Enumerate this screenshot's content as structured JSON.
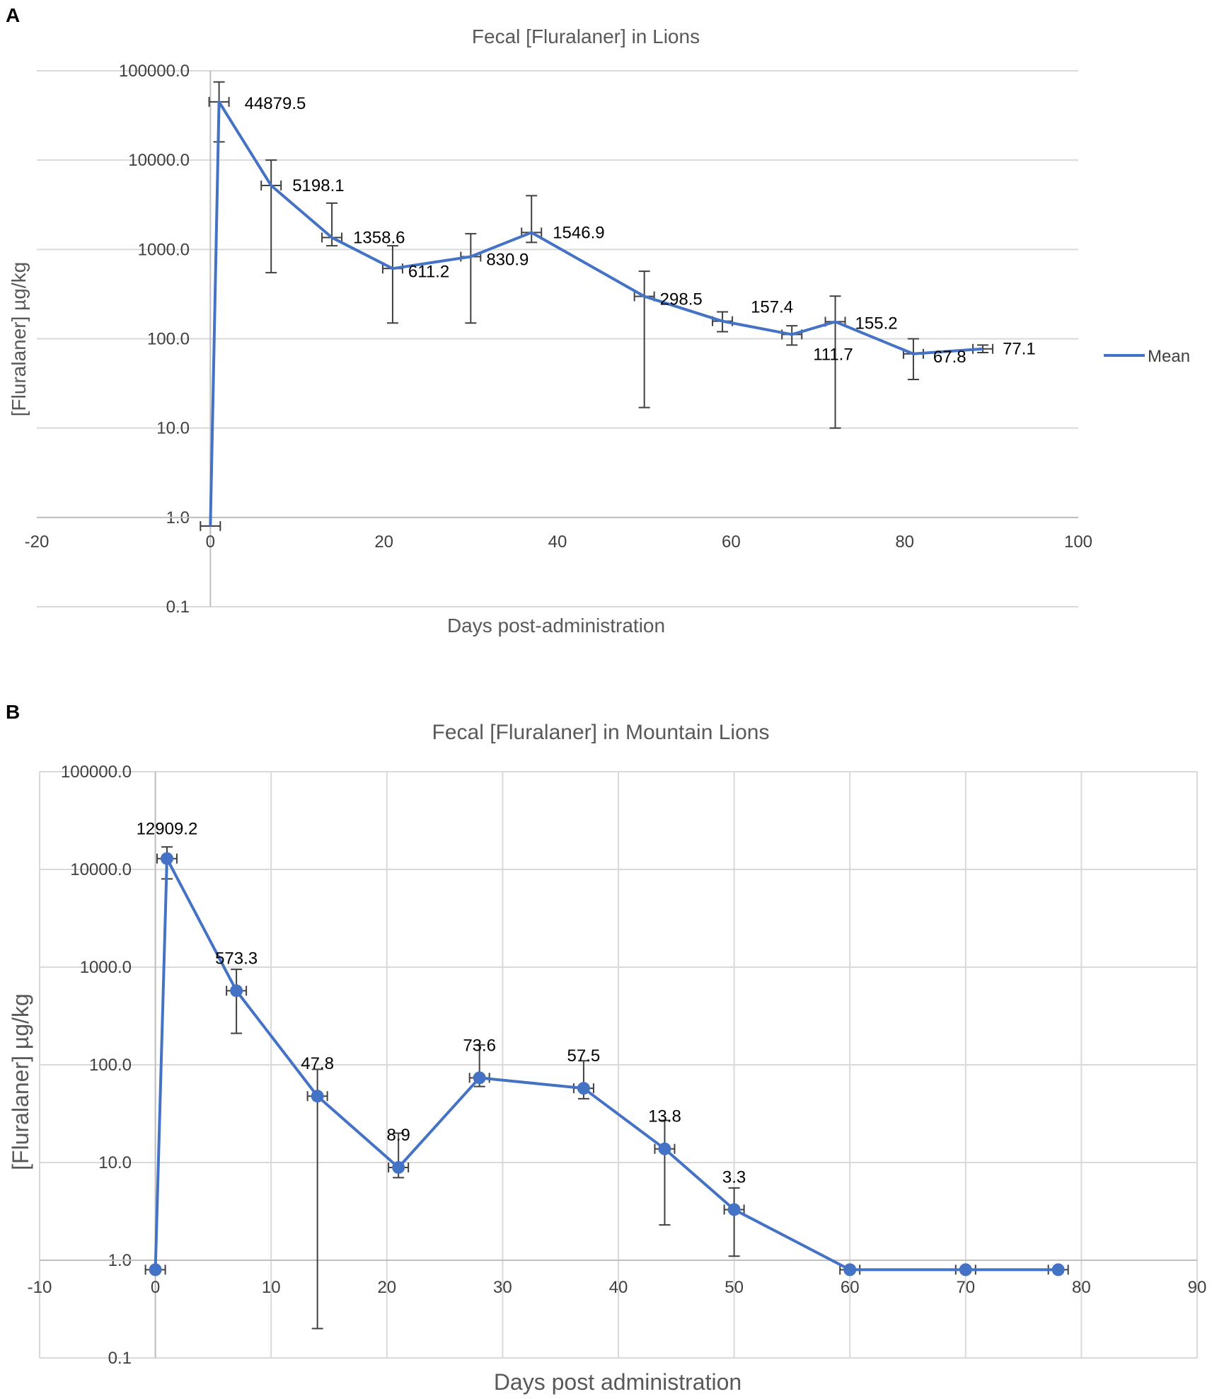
{
  "chart_data": [
    {
      "panel": "A",
      "type": "line",
      "title": "Fecal [Fluralaner] in Lions",
      "xlabel": "Days post-administration",
      "ylabel": "[Fluralaner] µg/kg",
      "yscale": "log",
      "ylim": [
        0.1,
        100000
      ],
      "xlim": [
        -20,
        100
      ],
      "xticks": [
        "-20",
        "0",
        "20",
        "40",
        "60",
        "80",
        "100"
      ],
      "yticks": [
        "0.1",
        "1.0",
        "10.0",
        "100.0",
        "1000.0",
        "10000.0",
        "100000.0"
      ],
      "grid": "horizontal",
      "legend": {
        "position": "right",
        "entries": [
          "Mean"
        ]
      },
      "markers": false,
      "color": "#4472C4",
      "series": [
        {
          "name": "Mean",
          "x": [
            0,
            1,
            7,
            14,
            21,
            30,
            37,
            50,
            59,
            67,
            72,
            81,
            89
          ],
          "values": [
            0.8,
            44879.5,
            5198.1,
            1358.6,
            611.2,
            830.9,
            1546.9,
            298.5,
            157.4,
            111.7,
            155.2,
            67.8,
            77.1
          ],
          "labels": [
            "",
            "44879.5",
            "5198.1",
            "1358.6",
            "611.2",
            "830.9",
            "1546.9",
            "298.5",
            "157.4",
            "111.7",
            "155.2",
            "67.8",
            "77.1"
          ],
          "err_low": [
            null,
            16000,
            550,
            1100,
            150,
            150,
            1200,
            17,
            120,
            85,
            10,
            35,
            70
          ],
          "err_high": [
            null,
            75000,
            10000,
            3300,
            1100,
            1500,
            4000,
            570,
            200,
            140,
            300,
            100,
            85
          ]
        }
      ]
    },
    {
      "panel": "B",
      "type": "line",
      "title": "Fecal [Fluralaner] in Mountain Lions",
      "xlabel": "Days post administration",
      "ylabel": "[Fluralaner] µg/kg",
      "yscale": "log",
      "ylim": [
        0.1,
        100000
      ],
      "xlim": [
        -10,
        90
      ],
      "xticks": [
        "-10",
        "0",
        "10",
        "20",
        "30",
        "40",
        "50",
        "60",
        "70",
        "80",
        "90"
      ],
      "yticks": [
        "0.1",
        "1.0",
        "10.0",
        "100.0",
        "1000.0",
        "10000.0",
        "100000.0"
      ],
      "grid": "both",
      "markers": true,
      "color": "#4472C4",
      "series": [
        {
          "name": "Mean",
          "x": [
            0,
            1,
            7,
            14,
            21,
            28,
            37,
            44,
            50,
            60,
            70,
            78
          ],
          "values": [
            0.8,
            12909.2,
            573.3,
            47.8,
            8.9,
            73.6,
            57.5,
            13.8,
            3.3,
            0.8,
            0.8,
            0.8
          ],
          "labels": [
            "",
            "12909.2",
            "573.3",
            "47.8",
            "8.9",
            "73.6",
            "57.5",
            "13.8",
            "3.3",
            "",
            "",
            ""
          ],
          "err_low": [
            null,
            8000,
            210,
            0.2,
            7,
            60,
            45,
            2.3,
            1.1,
            null,
            null,
            null
          ],
          "err_high": [
            null,
            17000,
            950,
            90,
            20,
            160,
            110,
            27,
            5.5,
            null,
            null,
            null
          ]
        }
      ]
    }
  ]
}
